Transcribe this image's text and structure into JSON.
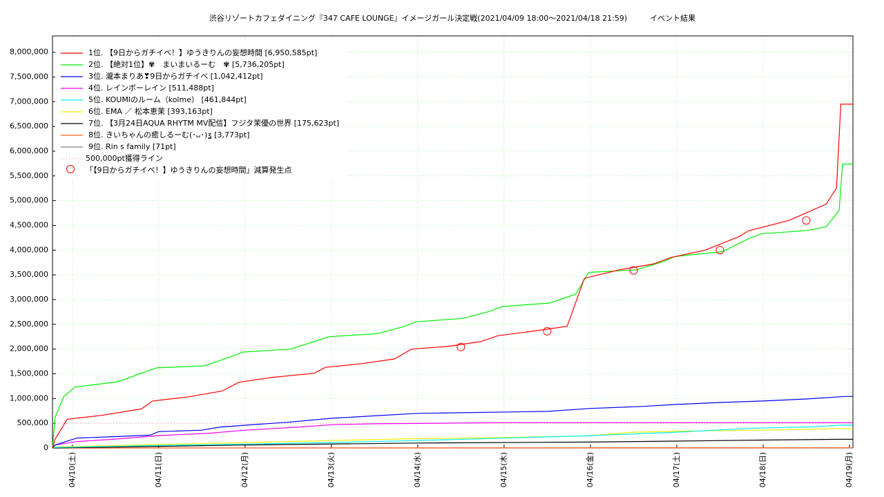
{
  "chart_data": {
    "type": "line",
    "title": "渋谷リゾートカフェダイニング『347 CAFE  LOUNGE』イメージガール決定戦(2021/04/09 18:00〜2021/04/18 21:59)　　　イベント結果",
    "xlim": [
      -0.23,
      9.04
    ],
    "xticks": [
      {
        "value": 0,
        "label": "04/10(土)"
      },
      {
        "value": 1,
        "label": "04/11(日)"
      },
      {
        "value": 2,
        "label": "04/12(月)"
      },
      {
        "value": 3,
        "label": "04/13(火)"
      },
      {
        "value": 4,
        "label": "04/14(水)"
      },
      {
        "value": 5,
        "label": "04/15(木)"
      },
      {
        "value": 6,
        "label": "04/16(金)"
      },
      {
        "value": 7,
        "label": "04/17(土)"
      },
      {
        "value": 8,
        "label": "04/18(日)"
      },
      {
        "value": 9,
        "label": "04/19(月)"
      }
    ],
    "ylim": [
      0,
      8330000
    ],
    "yticks": [
      {
        "value": 0,
        "label": "0"
      },
      {
        "value": 500000,
        "label": "500,000"
      },
      {
        "value": 1000000,
        "label": "1,000,000"
      },
      {
        "value": 1500000,
        "label": "1,500,000"
      },
      {
        "value": 2000000,
        "label": "2,000,000"
      },
      {
        "value": 2500000,
        "label": "2,500,000"
      },
      {
        "value": 3000000,
        "label": "3,000,000"
      },
      {
        "value": 3500000,
        "label": "3,500,000"
      },
      {
        "value": 4000000,
        "label": "4,000,000"
      },
      {
        "value": 4500000,
        "label": "4,500,000"
      },
      {
        "value": 5000000,
        "label": "5,000,000"
      },
      {
        "value": 5500000,
        "label": "5,500,000"
      },
      {
        "value": 6000000,
        "label": "6,000,000"
      },
      {
        "value": 6500000,
        "label": "6,500,000"
      },
      {
        "value": 7000000,
        "label": "7,000,000"
      },
      {
        "value": 7500000,
        "label": "7,500,000"
      },
      {
        "value": 8000000,
        "label": "8,000,000"
      }
    ],
    "grid": true,
    "series": [
      {
        "name": "1位. 【9日からガチイベ！】ゆうきりんの妄想時間 [6,950,585pt]",
        "color": "#ff0000",
        "x": [
          -0.23,
          -0.2,
          -0.06,
          0.34,
          0.8,
          0.93,
          1.33,
          1.73,
          1.93,
          2.33,
          2.8,
          2.93,
          3.33,
          3.73,
          3.93,
          4.33,
          4.73,
          4.93,
          5.33,
          5.73,
          5.93,
          6.33,
          6.73,
          6.93,
          7.33,
          7.73,
          7.83,
          8.3,
          8.73,
          8.85,
          8.9,
          9.04
        ],
        "values": [
          0,
          180000,
          580000,
          660000,
          790000,
          950000,
          1030000,
          1150000,
          1330000,
          1430000,
          1510000,
          1630000,
          1700000,
          1800000,
          2000000,
          2050000,
          2150000,
          2270000,
          2360000,
          2460000,
          3430000,
          3600000,
          3720000,
          3850000,
          4000000,
          4280000,
          4390000,
          4600000,
          4930000,
          5250000,
          6950585,
          6950585
        ]
      },
      {
        "name": "2位. 【絶対1位】✾　まいまいるーむ　✾ [5,736,205pt]",
        "color": "#00ee00",
        "x": [
          -0.23,
          -0.2,
          -0.1,
          0.03,
          0.53,
          0.83,
          0.98,
          1.53,
          1.83,
          1.98,
          2.53,
          2.83,
          2.98,
          3.53,
          3.83,
          3.98,
          4.53,
          4.83,
          4.98,
          5.53,
          5.83,
          5.98,
          6.53,
          6.83,
          6.98,
          7.53,
          7.83,
          7.98,
          8.53,
          8.73,
          8.88,
          8.92,
          9.04
        ],
        "values": [
          0,
          620000,
          1040000,
          1230000,
          1340000,
          1530000,
          1620000,
          1660000,
          1840000,
          1940000,
          2000000,
          2170000,
          2250000,
          2310000,
          2450000,
          2550000,
          2620000,
          2760000,
          2860000,
          2930000,
          3110000,
          3550000,
          3600000,
          3760000,
          3870000,
          3970000,
          4230000,
          4330000,
          4400000,
          4470000,
          4800000,
          5736205,
          5736205
        ]
      },
      {
        "name": "3位. 瀧本まりあ❣9日からガチイベ [1,042,412pt]",
        "color": "#0000ee",
        "x": [
          -0.23,
          -0.2,
          0.05,
          0.5,
          0.9,
          1.0,
          1.5,
          1.7,
          2.0,
          2.5,
          3.0,
          3.5,
          4.0,
          5.5,
          6.0,
          6.6,
          7.0,
          7.5,
          8.0,
          8.5,
          8.95,
          9.04
        ],
        "values": [
          0,
          60000,
          200000,
          230000,
          260000,
          330000,
          360000,
          420000,
          460000,
          520000,
          600000,
          650000,
          700000,
          740000,
          800000,
          840000,
          880000,
          920000,
          950000,
          990000,
          1042412,
          1042412
        ]
      },
      {
        "name": "4位. レインボーレイン [511,488pt]",
        "color": "#ee00ee",
        "x": [
          -0.23,
          -0.2,
          0.05,
          0.5,
          1.0,
          1.6,
          2.0,
          2.6,
          3.0,
          3.5,
          5.0,
          9.04
        ],
        "values": [
          0,
          60000,
          130000,
          180000,
          250000,
          300000,
          360000,
          420000,
          470000,
          490000,
          511488,
          511488
        ]
      },
      {
        "name": "5位. KOUMIのルーム（kolme） [461,844pt]",
        "color": "#00eeee",
        "x": [
          -0.23,
          -0.2,
          1.0,
          2.0,
          3.0,
          4.0,
          5.0,
          6.0,
          7.0,
          7.9,
          8.6,
          8.9,
          9.04
        ],
        "values": [
          0,
          10000,
          50000,
          80000,
          110000,
          150000,
          200000,
          250000,
          320000,
          400000,
          430000,
          461844,
          461844
        ]
      },
      {
        "name": "6位. EMA ／ 松本恵茉 [393,163pt]",
        "color": "#eeee00",
        "x": [
          -0.23,
          -0.2,
          1.0,
          2.0,
          3.0,
          4.0,
          5.0,
          6.0,
          6.5,
          7.0,
          8.0,
          8.9,
          9.04
        ],
        "values": [
          0,
          20000,
          70000,
          110000,
          150000,
          190000,
          210000,
          250000,
          320000,
          340000,
          360000,
          393163,
          393163
        ]
      },
      {
        "name": "7位. 【3月24日AQUA RHYTM MV配信】フジタ茉優の世界 [175,623pt]",
        "color": "#000000",
        "x": [
          -0.23,
          0.5,
          2.0,
          4.0,
          6.0,
          7.0,
          8.0,
          8.9,
          9.04
        ],
        "values": [
          0,
          20000,
          60000,
          100000,
          120000,
          140000,
          160000,
          175623,
          175623
        ]
      },
      {
        "name": "8位. きいちゃんの癒しるーむ(･ᴗ･)ʓ [3,773pt]",
        "color": "#ff6020",
        "x": [
          -0.23,
          8.9,
          9.04
        ],
        "values": [
          0,
          3773,
          3773
        ]
      },
      {
        "name": "9位. Rin s family [71pt]",
        "color": "#808080",
        "x": [
          -0.23,
          9.04
        ],
        "values": [
          0,
          71
        ]
      }
    ],
    "threshold": {
      "name": "500,000pt獲得ライン",
      "value": 500000,
      "color": "#e08080"
    },
    "markers": {
      "name": "「【9日からガチイベ！】ゆうきりんの妄想時間」減算発生点",
      "color": "#ff0000",
      "x": [
        4.5,
        5.5,
        6.5,
        7.5,
        8.5
      ],
      "values": [
        2040000,
        2360000,
        3590000,
        4000000,
        4600000
      ]
    }
  }
}
